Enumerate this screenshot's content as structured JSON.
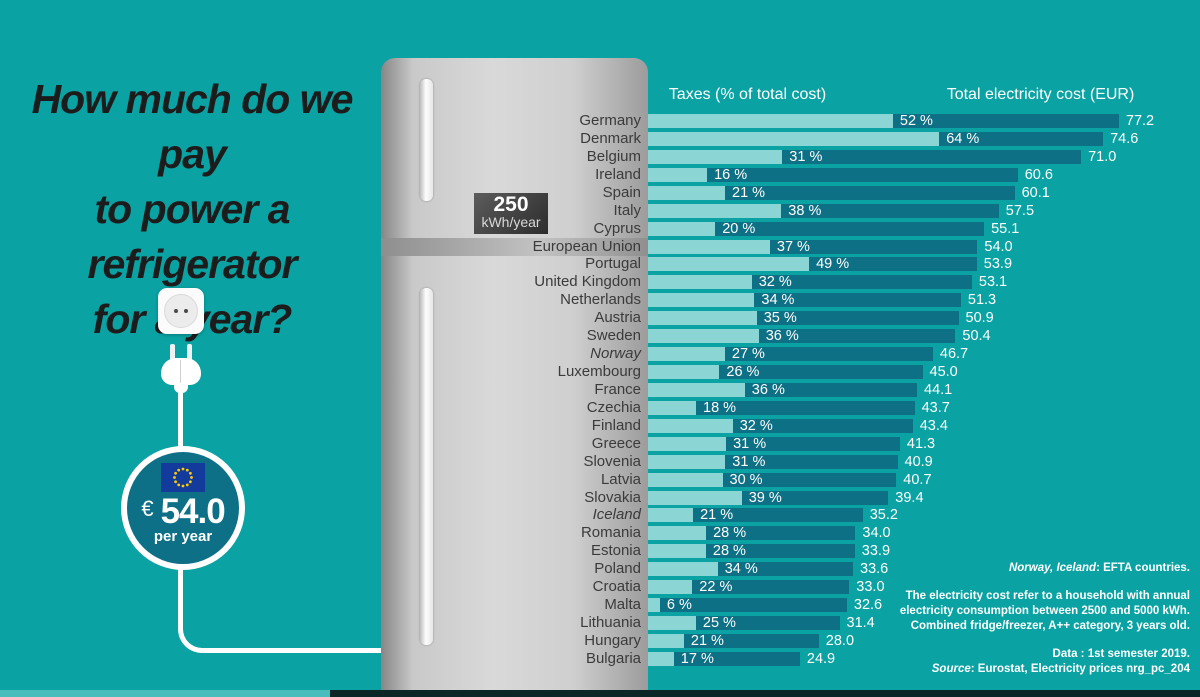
{
  "title": {
    "line1": "How much do we pay",
    "line2": "to power a refrigerator",
    "line3": "for a year?"
  },
  "price_circle": {
    "currency": "€",
    "amount": "54.0",
    "per": "per year"
  },
  "fridge_badge": {
    "value": "250",
    "unit": "kWh/year"
  },
  "chart_data": {
    "type": "bar",
    "legend": {
      "taxes": "Taxes (% of total cost)",
      "total": "Total electricity cost (EUR)"
    },
    "bar_colors": {
      "taxes": "#8bd5d5",
      "total": "#0e7085"
    },
    "xlim_total_eur": [
      0,
      78
    ],
    "rows": [
      {
        "country": "Germany",
        "tax_pct": 52,
        "total": 77.2
      },
      {
        "country": "Denmark",
        "tax_pct": 64,
        "total": 74.6
      },
      {
        "country": "Belgium",
        "tax_pct": 31,
        "total": 71.0
      },
      {
        "country": "Ireland",
        "tax_pct": 16,
        "total": 60.6
      },
      {
        "country": "Spain",
        "tax_pct": 21,
        "total": 60.1
      },
      {
        "country": "Italy",
        "tax_pct": 38,
        "total": 57.5
      },
      {
        "country": "Cyprus",
        "tax_pct": 20,
        "total": 55.1
      },
      {
        "country": "European Union",
        "tax_pct": 37,
        "total": 54.0,
        "highlight": true
      },
      {
        "country": "Portugal",
        "tax_pct": 49,
        "total": 53.9
      },
      {
        "country": "United Kingdom",
        "tax_pct": 32,
        "total": 53.1
      },
      {
        "country": "Netherlands",
        "tax_pct": 34,
        "total": 51.3
      },
      {
        "country": "Austria",
        "tax_pct": 35,
        "total": 50.9
      },
      {
        "country": "Sweden",
        "tax_pct": 36,
        "total": 50.4
      },
      {
        "country": "Norway",
        "tax_pct": 27,
        "total": 46.7,
        "italic": true
      },
      {
        "country": "Luxembourg",
        "tax_pct": 26,
        "total": 45.0
      },
      {
        "country": "France",
        "tax_pct": 36,
        "total": 44.1
      },
      {
        "country": "Czechia",
        "tax_pct": 18,
        "total": 43.7
      },
      {
        "country": "Finland",
        "tax_pct": 32,
        "total": 43.4
      },
      {
        "country": "Greece",
        "tax_pct": 31,
        "total": 41.3
      },
      {
        "country": "Slovenia",
        "tax_pct": 31,
        "total": 40.9
      },
      {
        "country": "Latvia",
        "tax_pct": 30,
        "total": 40.7
      },
      {
        "country": "Slovakia",
        "tax_pct": 39,
        "total": 39.4
      },
      {
        "country": "Iceland",
        "tax_pct": 21,
        "total": 35.2,
        "italic": true
      },
      {
        "country": "Romania",
        "tax_pct": 28,
        "total": 34.0
      },
      {
        "country": "Estonia",
        "tax_pct": 28,
        "total": 33.9
      },
      {
        "country": "Poland",
        "tax_pct": 34,
        "total": 33.6
      },
      {
        "country": "Croatia",
        "tax_pct": 22,
        "total": 33.0
      },
      {
        "country": "Malta",
        "tax_pct": 6,
        "total": 32.6
      },
      {
        "country": "Lithuania",
        "tax_pct": 25,
        "total": 31.4
      },
      {
        "country": "Hungary",
        "tax_pct": 21,
        "total": 28.0
      },
      {
        "country": "Bulgaria",
        "tax_pct": 17,
        "total": 24.9
      }
    ]
  },
  "footnotes": {
    "efta_italic": "Norway, Iceland",
    "efta_rest": ": EFTA countries.",
    "note_line1": "The electricity cost refer to a household with annual",
    "note_line2": "electricity consumption between 2500 and 5000 kWh.",
    "note_line3": "Combined fridge/freezer, A++ category, 3 years old.",
    "data_line": "Data : 1st semester 2019.",
    "source_italic": "Source",
    "source_rest": ": Eurostat, Electricity prices nrg_pc_204"
  },
  "colors": {
    "background": "#0aa2a2",
    "circle_fill": "#0d7086",
    "eu_flag_blue": "#123b9b",
    "eu_flag_stars": "#ffcc00",
    "bottom_strip_dark": "#0b2626",
    "bottom_strip_light": "#49bcbc"
  }
}
